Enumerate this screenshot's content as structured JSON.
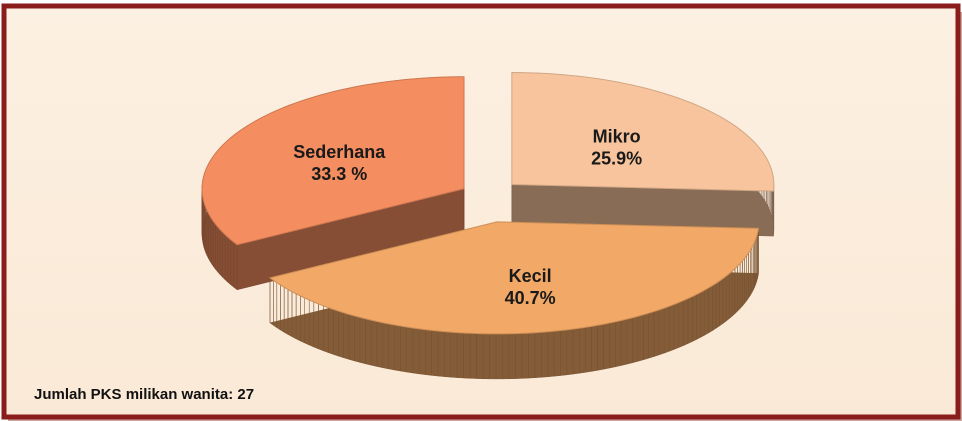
{
  "chart_data": {
    "type": "pie",
    "categories": [
      "Mikro",
      "Kecil",
      "Sederhana"
    ],
    "values": [
      25.9,
      40.7,
      33.3
    ],
    "value_labels": [
      "25.9%",
      "40.7%",
      "33.3 %"
    ],
    "colors": [
      "#f7c49d",
      "#f2a866",
      "#f48d5f"
    ],
    "annotation": "Jumlah PKS milikan wanita: 27"
  }
}
